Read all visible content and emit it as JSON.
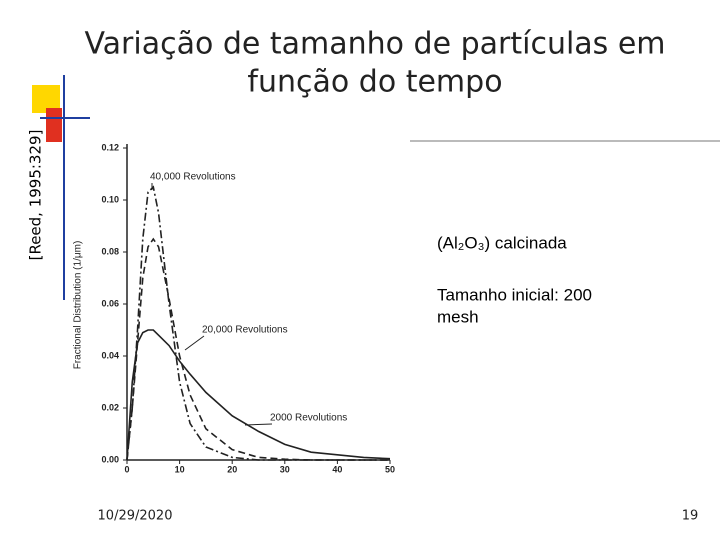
{
  "slide": {
    "title_lines": [
      "Variação de tamanho de partículas em",
      "função do tempo"
    ],
    "citation": "[Reed, 1995:329]",
    "notes": [
      "(Al₂O₃) calcinada",
      "Tamanho inicial: 200",
      "mesh"
    ],
    "date": "10/29/2020",
    "page": "19"
  },
  "chart_data": {
    "type": "line",
    "y_label": "Fractional Distribution (1/μm)",
    "x": [
      0,
      1,
      2,
      3,
      4,
      5,
      6,
      8,
      10,
      12,
      15,
      20,
      25,
      30,
      35,
      40,
      45,
      50
    ],
    "series": [
      {
        "name": "40,000 Revolutions",
        "color": "#222",
        "dash": "dash-dot",
        "values": [
          0,
          0.02,
          0.05,
          0.085,
          0.103,
          0.105,
          0.095,
          0.06,
          0.03,
          0.014,
          0.005,
          0.001,
          0,
          0,
          0,
          0,
          0,
          0
        ]
      },
      {
        "name": "20,000 Revolutions",
        "color": "#222",
        "dash": "dashed",
        "values": [
          0,
          0.02,
          0.045,
          0.07,
          0.082,
          0.085,
          0.082,
          0.062,
          0.04,
          0.025,
          0.012,
          0.004,
          0.001,
          0.0003,
          0,
          0,
          0,
          0
        ]
      },
      {
        "name": "2000 Revolutions",
        "color": "#222",
        "dash": "solid",
        "values": [
          0,
          0.03,
          0.045,
          0.049,
          0.05,
          0.05,
          0.048,
          0.044,
          0.038,
          0.033,
          0.026,
          0.017,
          0.011,
          0.006,
          0.003,
          0.002,
          0.001,
          0.0005
        ]
      }
    ],
    "xlim": [
      0,
      50
    ],
    "xticks": [
      0,
      10,
      20,
      30,
      40,
      50
    ],
    "ylim": [
      0,
      0.12
    ],
    "yticks": [
      {
        "value": 0,
        "label": "0.00"
      },
      0.02,
      0.04,
      0.06,
      0.08,
      {
        "value": 0.1,
        "label": "0.10"
      },
      0.12
    ]
  }
}
